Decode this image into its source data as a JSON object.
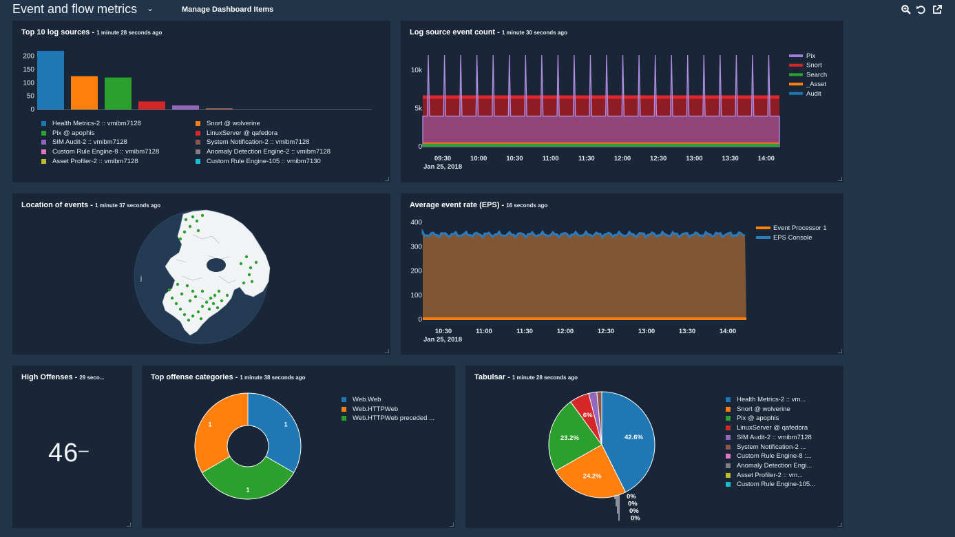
{
  "dashboard": {
    "title": "Event and flow metrics",
    "manage_label": "Manage Dashboard Items",
    "toolbar_icons": [
      "zoom-icon",
      "refresh-icon",
      "popout-icon"
    ]
  },
  "colors": {
    "blue": "#1f77b4",
    "orange": "#ff7f0e",
    "green": "#2ca02c",
    "red": "#d62728",
    "purple": "#9467bd",
    "brown": "#8c564b",
    "pink": "#e377c2",
    "gray": "#7f7f7f",
    "olive": "#bcbd22",
    "cyan": "#17becf"
  },
  "top_log_sources": {
    "title": "Top 10 log sources - ",
    "timestamp": "1 minute 28 seconds ago",
    "legend": [
      "Health Metrics-2 :: vmibm7128",
      "Snort @ wolverine",
      "Pix @ apophis",
      "LinuxServer @ qafedora",
      "SIM Audit-2 :: vmibm7128",
      "System Notification-2 :: vmibm7128",
      "Custom Rule Engine-8 :: vmibm7128",
      "Anomaly Detection Engine-2 :: vmibm7128",
      "Asset Profiler-2 :: vmibm7128",
      "Custom Rule Engine-105 :: vmibm7130"
    ]
  },
  "log_event_count": {
    "title": "Log source event count - ",
    "timestamp": "1 minute 30 seconds ago",
    "legend": [
      "Pix",
      "Snort",
      "Search",
      "_Asset",
      "Audit"
    ],
    "date_label": "Jan 25, 2018"
  },
  "location": {
    "title": "Location of events - ",
    "timestamp": "1 minute 37 seconds ago",
    "marker": "j"
  },
  "eps": {
    "title": "Average event rate (EPS) - ",
    "timestamp": "16 seconds ago",
    "legend": [
      "Event Processor 1",
      "EPS Console"
    ],
    "date_label": "Jan 25, 2018"
  },
  "high_offenses": {
    "title": "High Offenses - ",
    "timestamp": "29 seco...",
    "value": "46",
    "trend": "–"
  },
  "offense_categories": {
    "title": "Top offense categories - ",
    "timestamp": "1 minute 38 seconds ago",
    "legend": [
      "Web.Web",
      "Web.HTTPWeb",
      "Web.HTTPWeb  preceded ..."
    ]
  },
  "tabulsar": {
    "title": "Tabulsar - ",
    "timestamp": "1 minute 28 seconds ago",
    "legend": [
      "Health Metrics-2 :: vm...",
      "Snort @ wolverine",
      "Pix @ apophis",
      "LinuxServer @ qafedora",
      "SIM Audit-2 :: vmibm7128",
      "System Notification-2 ...",
      "Custom Rule Engine-8 :...",
      "Anomaly Detection Engi...",
      "Asset Profiler-2 :: vm...",
      "Custom Rule Engine-105..."
    ]
  },
  "chart_data": [
    {
      "type": "bar",
      "title": "Top 10 log sources",
      "categories": [
        "Health Metrics-2 :: vmibm7128",
        "Snort @ wolverine",
        "Pix @ apophis",
        "LinuxServer @ qafedora",
        "SIM Audit-2 :: vmibm7128",
        "System Notification-2 :: vmibm7128",
        "Custom Rule Engine-8 :: vmibm7128",
        "Anomaly Detection Engine-2 :: vmibm7128",
        "Asset Profiler-2 :: vmibm7128",
        "Custom Rule Engine-105 :: vmibm7130"
      ],
      "values": [
        220,
        125,
        120,
        30,
        15,
        5,
        0,
        0,
        0,
        0
      ],
      "ylim": [
        0,
        230
      ],
      "yticks": [
        "0",
        "50",
        "100",
        "150",
        "200"
      ],
      "ytick_values": [
        0,
        50,
        100,
        150,
        200
      ]
    },
    {
      "type": "line",
      "title": "Log source event count",
      "x_ticks": [
        "09:30",
        "10:00",
        "10:30",
        "11:00",
        "11:30",
        "12:00",
        "12:30",
        "13:00",
        "13:30",
        "14:00"
      ],
      "yticks": [
        "0",
        "5k",
        "10k"
      ],
      "ytick_values": [
        0,
        5000,
        10000
      ],
      "ylim": [
        0,
        12000
      ],
      "series": [
        {
          "name": "Pix",
          "baseline": 4000,
          "spike": 12000,
          "spike_count": 22
        },
        {
          "name": "Snort",
          "value": 6500
        },
        {
          "name": "Search",
          "value": 0
        },
        {
          "name": "_Asset",
          "value": 300
        },
        {
          "name": "Audit",
          "value": 0
        }
      ]
    },
    {
      "type": "area",
      "title": "Average event rate (EPS)",
      "x_ticks": [
        "10:30",
        "11:00",
        "11:30",
        "12:00",
        "12:30",
        "13:00",
        "13:30",
        "14:00"
      ],
      "yticks": [
        "0",
        "100",
        "200",
        "300",
        "400"
      ],
      "ytick_values": [
        0,
        100,
        200,
        300,
        400
      ],
      "ylim": [
        0,
        400
      ],
      "series": [
        {
          "name": "Event Processor 1",
          "value": 0
        },
        {
          "name": "EPS Console",
          "value": 350
        }
      ]
    },
    {
      "type": "pie",
      "title": "Top offense categories",
      "labels": [
        "Web.Web",
        "Web.HTTPWeb",
        "Web.HTTPWeb  preceded ..."
      ],
      "values": [
        1,
        1,
        1
      ],
      "value_labels": [
        "1",
        "1",
        "1"
      ]
    },
    {
      "type": "pie",
      "title": "Tabulsar",
      "labels": [
        "Health Metrics-2 :: vm...",
        "Snort @ wolverine",
        "Pix @ apophis",
        "LinuxServer @ qafedora",
        "SIM Audit-2 :: vmibm7128",
        "System Notification-2 ...",
        "Custom Rule Engine-8 :...",
        "Anomaly Detection Engi...",
        "Asset Profiler-2 :: vm...",
        "Custom Rule Engine-105..."
      ],
      "values": [
        42.6,
        24.2,
        23.2,
        6,
        2.5,
        1.5,
        0,
        0,
        0,
        0
      ],
      "value_labels": [
        "42.6%",
        "24.2%",
        "23.2%",
        "6%",
        "",
        "",
        "0%",
        "0%",
        "0%",
        "0%"
      ]
    }
  ]
}
